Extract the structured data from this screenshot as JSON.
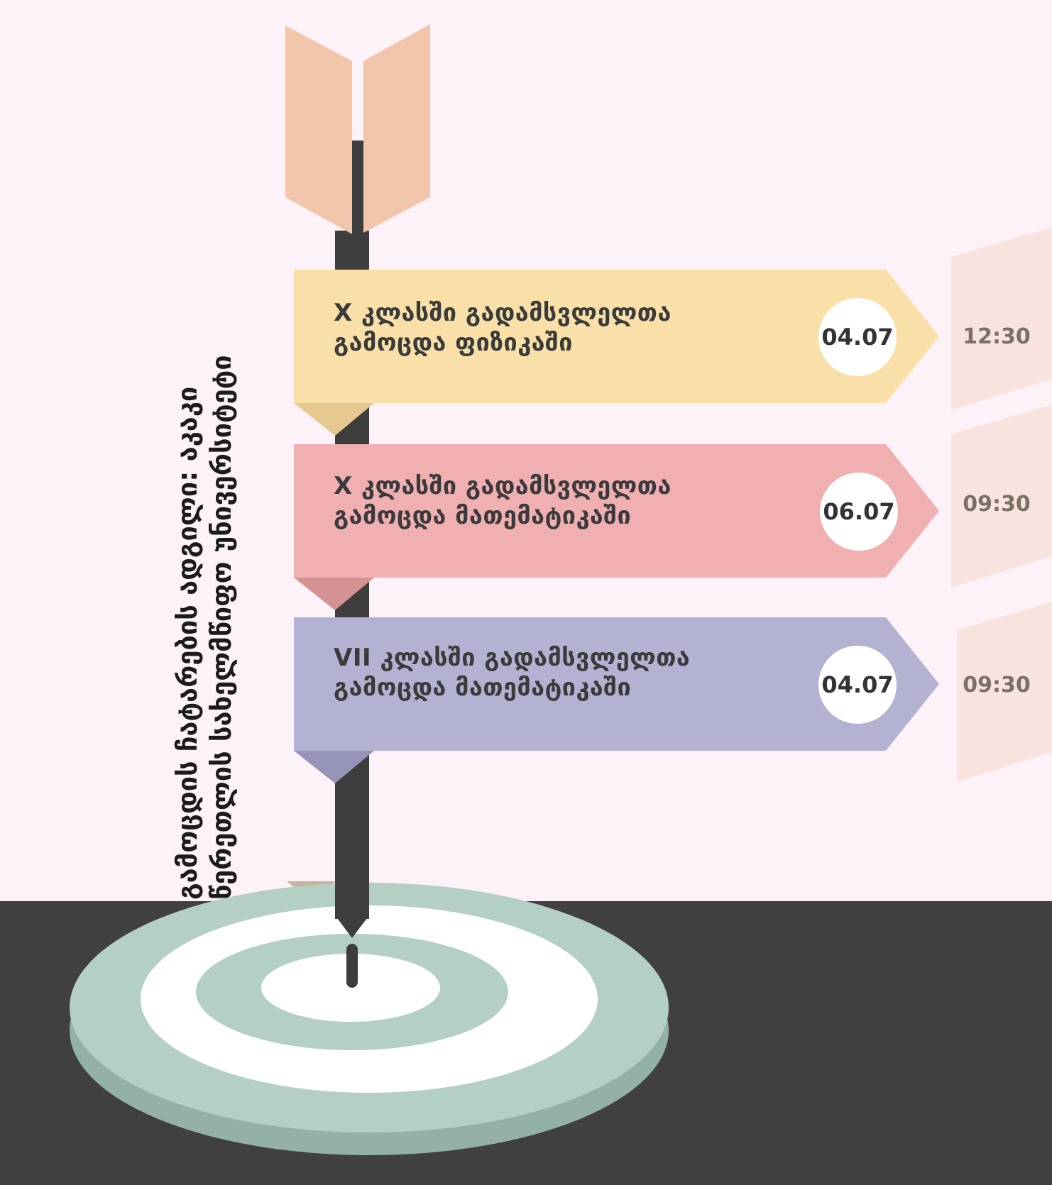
{
  "title": {
    "line1": "გამოცდის ჩატარების ადგილი: აკაკი",
    "line2": "წერეთლის სახელმწიფო უნივერსიტეტი"
  },
  "exams": [
    {
      "line1": "X კლასში გადამსვლელთა",
      "line2": "გამოცდა ფიზიკაში",
      "date": "04.07",
      "time": "12:30",
      "color": "#f8e0a8"
    },
    {
      "line1": "X კლასში გადამსვლელთა",
      "line2": "გამოცდა მათემატიკაში",
      "date": "06.07",
      "time": "09:30",
      "color": "#f0b0b2"
    },
    {
      "line1": "VII კლასში გადამსვლელთა",
      "line2": "გამოცდა მათემატიკაში",
      "date": "04.07",
      "time": "09:30",
      "color": "#b4b2d2"
    }
  ],
  "colors": {
    "background": "#fdf2f7",
    "floor": "#404040",
    "arrow_shaft": "#3d3d3d",
    "fletching": "#f2c6aa",
    "target_outer": "#b4cfc3",
    "target_edge": "#93b1a4",
    "time_panel": "#f9e3de"
  },
  "icons": {
    "arrow": "arrow-icon",
    "target": "target-icon"
  }
}
